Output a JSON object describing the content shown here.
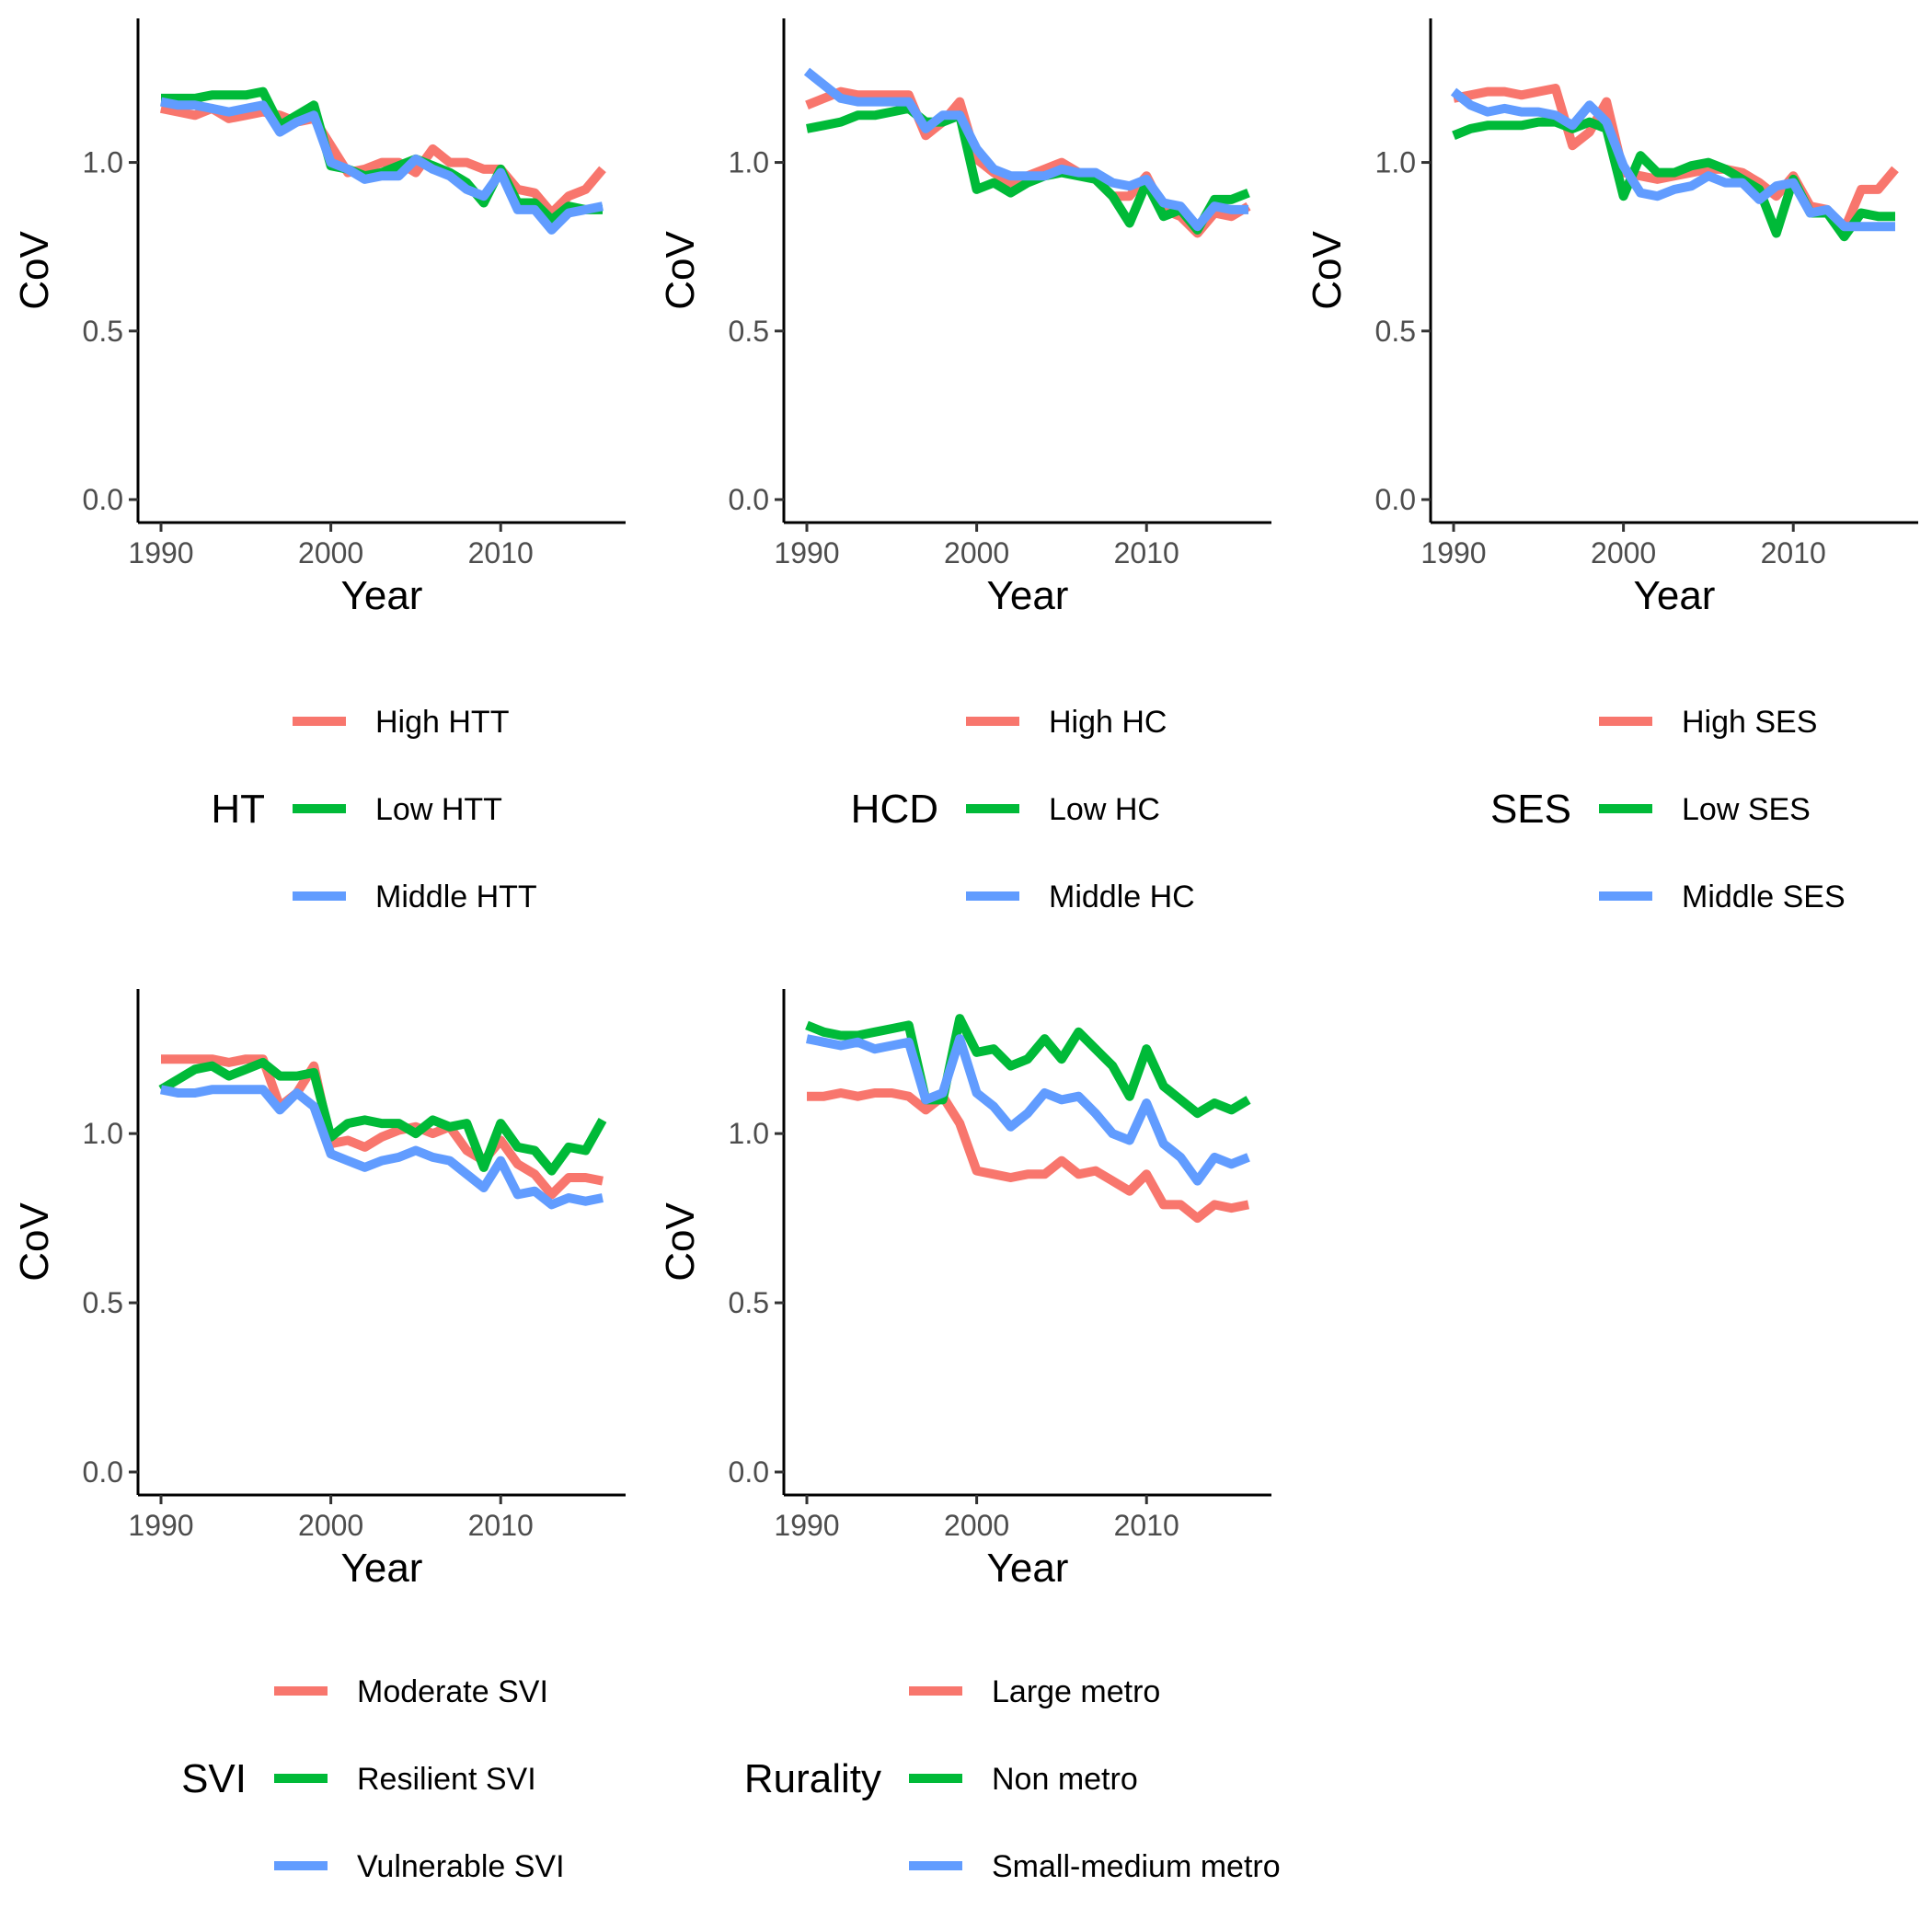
{
  "colors": {
    "red": "#F8766D",
    "green": "#00BA38",
    "blue": "#619CFF"
  },
  "chart_data": [
    {
      "type": "line",
      "xlabel": "Year",
      "ylabel": "CoV",
      "xlim": [
        1990,
        2016
      ],
      "ylim": [
        0,
        1.4
      ],
      "x_ticks": [
        "1990",
        "2000",
        "2010"
      ],
      "y_ticks": [
        "0.0",
        "0.5",
        "1.0"
      ],
      "x": [
        1990,
        1991,
        1992,
        1993,
        1994,
        1995,
        1996,
        1997,
        1998,
        1999,
        2000,
        2001,
        2002,
        2003,
        2004,
        2005,
        2006,
        2007,
        2008,
        2009,
        2010,
        2011,
        2012,
        2013,
        2014,
        2015,
        2016
      ],
      "legend_title": "HT",
      "series": [
        {
          "name": "High HTT",
          "color": "#F8766D",
          "values": [
            1.16,
            1.15,
            1.14,
            1.16,
            1.13,
            1.14,
            1.15,
            1.14,
            1.12,
            1.13,
            1.05,
            0.97,
            0.98,
            1.0,
            1.0,
            0.97,
            1.04,
            1.0,
            1.0,
            0.98,
            0.98,
            0.92,
            0.91,
            0.85,
            0.9,
            0.92,
            0.98
          ]
        },
        {
          "name": "Low HTT",
          "color": "#00BA38",
          "values": [
            1.19,
            1.19,
            1.19,
            1.2,
            1.2,
            1.2,
            1.21,
            1.11,
            1.14,
            1.17,
            0.99,
            0.98,
            0.96,
            0.97,
            0.99,
            1.01,
            0.99,
            0.97,
            0.94,
            0.88,
            0.98,
            0.88,
            0.88,
            0.83,
            0.87,
            0.86,
            0.86
          ]
        },
        {
          "name": "Middle HTT",
          "color": "#619CFF",
          "values": [
            1.18,
            1.17,
            1.17,
            1.16,
            1.15,
            1.16,
            1.17,
            1.09,
            1.12,
            1.14,
            1.0,
            0.98,
            0.95,
            0.96,
            0.96,
            1.01,
            0.98,
            0.96,
            0.92,
            0.9,
            0.97,
            0.86,
            0.86,
            0.8,
            0.85,
            0.86,
            0.87
          ]
        }
      ]
    },
    {
      "type": "line",
      "xlabel": "Year",
      "ylabel": "CoV",
      "xlim": [
        1990,
        2016
      ],
      "ylim": [
        0,
        1.4
      ],
      "x_ticks": [
        "1990",
        "2000",
        "2010"
      ],
      "y_ticks": [
        "0.0",
        "0.5",
        "1.0"
      ],
      "x": [
        1990,
        1991,
        1992,
        1993,
        1994,
        1995,
        1996,
        1997,
        1998,
        1999,
        2000,
        2001,
        2002,
        2003,
        2004,
        2005,
        2006,
        2007,
        2008,
        2009,
        2010,
        2011,
        2012,
        2013,
        2014,
        2015,
        2016
      ],
      "legend_title": "HCD",
      "series": [
        {
          "name": "High HC",
          "color": "#F8766D",
          "values": [
            1.17,
            1.19,
            1.21,
            1.2,
            1.2,
            1.2,
            1.2,
            1.08,
            1.12,
            1.18,
            1.01,
            0.97,
            0.94,
            0.96,
            0.98,
            1.0,
            0.97,
            0.95,
            0.9,
            0.9,
            0.96,
            0.86,
            0.84,
            0.79,
            0.85,
            0.84,
            0.87
          ]
        },
        {
          "name": "Low HC",
          "color": "#00BA38",
          "values": [
            1.1,
            1.11,
            1.12,
            1.14,
            1.14,
            1.15,
            1.16,
            1.12,
            1.12,
            1.14,
            0.92,
            0.94,
            0.91,
            0.94,
            0.96,
            0.97,
            0.96,
            0.95,
            0.9,
            0.82,
            0.94,
            0.84,
            0.86,
            0.8,
            0.89,
            0.89,
            0.91
          ]
        },
        {
          "name": "Middle HC",
          "color": "#619CFF",
          "values": [
            1.27,
            1.23,
            1.19,
            1.18,
            1.18,
            1.18,
            1.18,
            1.1,
            1.14,
            1.14,
            1.04,
            0.98,
            0.96,
            0.96,
            0.96,
            0.98,
            0.97,
            0.97,
            0.94,
            0.93,
            0.95,
            0.88,
            0.87,
            0.81,
            0.87,
            0.86,
            0.86
          ]
        }
      ]
    },
    {
      "type": "line",
      "xlabel": "Year",
      "ylabel": "CoV",
      "xlim": [
        1990,
        2016
      ],
      "ylim": [
        0,
        1.4
      ],
      "x_ticks": [
        "1990",
        "2000",
        "2010"
      ],
      "y_ticks": [
        "0.0",
        "0.5",
        "1.0"
      ],
      "x": [
        1990,
        1991,
        1992,
        1993,
        1994,
        1995,
        1996,
        1997,
        1998,
        1999,
        2000,
        2001,
        2002,
        2003,
        2004,
        2005,
        2006,
        2007,
        2008,
        2009,
        2010,
        2011,
        2012,
        2013,
        2014,
        2015,
        2016
      ],
      "legend_title": "SES",
      "series": [
        {
          "name": "High SES",
          "color": "#F8766D",
          "values": [
            1.19,
            1.2,
            1.21,
            1.21,
            1.2,
            1.21,
            1.22,
            1.05,
            1.09,
            1.18,
            0.97,
            0.96,
            0.95,
            0.96,
            0.97,
            0.98,
            0.98,
            0.97,
            0.94,
            0.9,
            0.96,
            0.87,
            0.86,
            0.8,
            0.92,
            0.92,
            0.98
          ]
        },
        {
          "name": "Low SES",
          "color": "#00BA38",
          "values": [
            1.08,
            1.1,
            1.11,
            1.11,
            1.11,
            1.12,
            1.12,
            1.1,
            1.12,
            1.1,
            0.9,
            1.02,
            0.97,
            0.97,
            0.99,
            1.0,
            0.98,
            0.95,
            0.92,
            0.79,
            0.95,
            0.85,
            0.85,
            0.78,
            0.85,
            0.84,
            0.84
          ]
        },
        {
          "name": "Middle SES",
          "color": "#619CFF",
          "values": [
            1.21,
            1.17,
            1.15,
            1.16,
            1.15,
            1.15,
            1.14,
            1.11,
            1.17,
            1.12,
            0.99,
            0.91,
            0.9,
            0.92,
            0.93,
            0.96,
            0.94,
            0.94,
            0.89,
            0.93,
            0.94,
            0.85,
            0.86,
            0.81,
            0.81,
            0.81,
            0.81
          ]
        }
      ]
    },
    {
      "type": "line",
      "xlabel": "Year",
      "ylabel": "CoV",
      "xlim": [
        1990,
        2016
      ],
      "ylim": [
        0,
        1.4
      ],
      "x_ticks": [
        "1990",
        "2000",
        "2010"
      ],
      "y_ticks": [
        "0.0",
        "0.5",
        "1.0"
      ],
      "x": [
        1990,
        1991,
        1992,
        1993,
        1994,
        1995,
        1996,
        1997,
        1998,
        1999,
        2000,
        2001,
        2002,
        2003,
        2004,
        2005,
        2006,
        2007,
        2008,
        2009,
        2010,
        2011,
        2012,
        2013,
        2014,
        2015,
        2016
      ],
      "legend_title": "SVI",
      "series": [
        {
          "name": "Moderate SVI",
          "color": "#F8766D",
          "values": [
            1.22,
            1.22,
            1.22,
            1.22,
            1.21,
            1.22,
            1.22,
            1.08,
            1.12,
            1.2,
            0.97,
            0.98,
            0.96,
            0.99,
            1.01,
            1.02,
            1.0,
            1.02,
            0.95,
            0.92,
            0.98,
            0.91,
            0.88,
            0.82,
            0.87,
            0.87,
            0.86
          ]
        },
        {
          "name": "Resilient SVI",
          "color": "#00BA38",
          "values": [
            1.13,
            1.16,
            1.19,
            1.2,
            1.17,
            1.19,
            1.21,
            1.17,
            1.17,
            1.18,
            0.99,
            1.03,
            1.04,
            1.03,
            1.03,
            1.0,
            1.04,
            1.02,
            1.03,
            0.9,
            1.03,
            0.96,
            0.95,
            0.89,
            0.96,
            0.95,
            1.04
          ]
        },
        {
          "name": "Vulnerable SVI",
          "color": "#619CFF",
          "values": [
            1.13,
            1.12,
            1.12,
            1.13,
            1.13,
            1.13,
            1.13,
            1.07,
            1.12,
            1.08,
            0.94,
            0.92,
            0.9,
            0.92,
            0.93,
            0.95,
            0.93,
            0.92,
            0.88,
            0.84,
            0.92,
            0.82,
            0.83,
            0.79,
            0.81,
            0.8,
            0.81
          ]
        }
      ]
    },
    {
      "type": "line",
      "xlabel": "Year",
      "ylabel": "CoV",
      "xlim": [
        1990,
        2016
      ],
      "ylim": [
        0,
        1.4
      ],
      "x_ticks": [
        "1990",
        "2000",
        "2010"
      ],
      "y_ticks": [
        "0.0",
        "0.5",
        "1.0"
      ],
      "x": [
        1990,
        1991,
        1992,
        1993,
        1994,
        1995,
        1996,
        1997,
        1998,
        1999,
        2000,
        2001,
        2002,
        2003,
        2004,
        2005,
        2006,
        2007,
        2008,
        2009,
        2010,
        2011,
        2012,
        2013,
        2014,
        2015,
        2016
      ],
      "legend_title": "Rurality",
      "series": [
        {
          "name": "Large metro",
          "color": "#F8766D",
          "values": [
            1.11,
            1.11,
            1.12,
            1.11,
            1.12,
            1.12,
            1.11,
            1.07,
            1.11,
            1.03,
            0.89,
            0.88,
            0.87,
            0.88,
            0.88,
            0.92,
            0.88,
            0.89,
            0.86,
            0.83,
            0.88,
            0.79,
            0.79,
            0.75,
            0.79,
            0.78,
            0.79
          ]
        },
        {
          "name": "Non metro",
          "color": "#00BA38",
          "values": [
            1.32,
            1.3,
            1.29,
            1.29,
            1.3,
            1.31,
            1.32,
            1.1,
            1.1,
            1.34,
            1.24,
            1.25,
            1.2,
            1.22,
            1.28,
            1.22,
            1.3,
            1.25,
            1.2,
            1.11,
            1.25,
            1.14,
            1.1,
            1.06,
            1.09,
            1.07,
            1.1
          ]
        },
        {
          "name": "Small-medium metro",
          "color": "#619CFF",
          "values": [
            1.28,
            1.27,
            1.26,
            1.27,
            1.25,
            1.26,
            1.27,
            1.1,
            1.12,
            1.28,
            1.12,
            1.08,
            1.02,
            1.06,
            1.12,
            1.1,
            1.11,
            1.06,
            1.0,
            0.98,
            1.09,
            0.97,
            0.93,
            0.86,
            0.93,
            0.91,
            0.93
          ]
        }
      ]
    }
  ]
}
